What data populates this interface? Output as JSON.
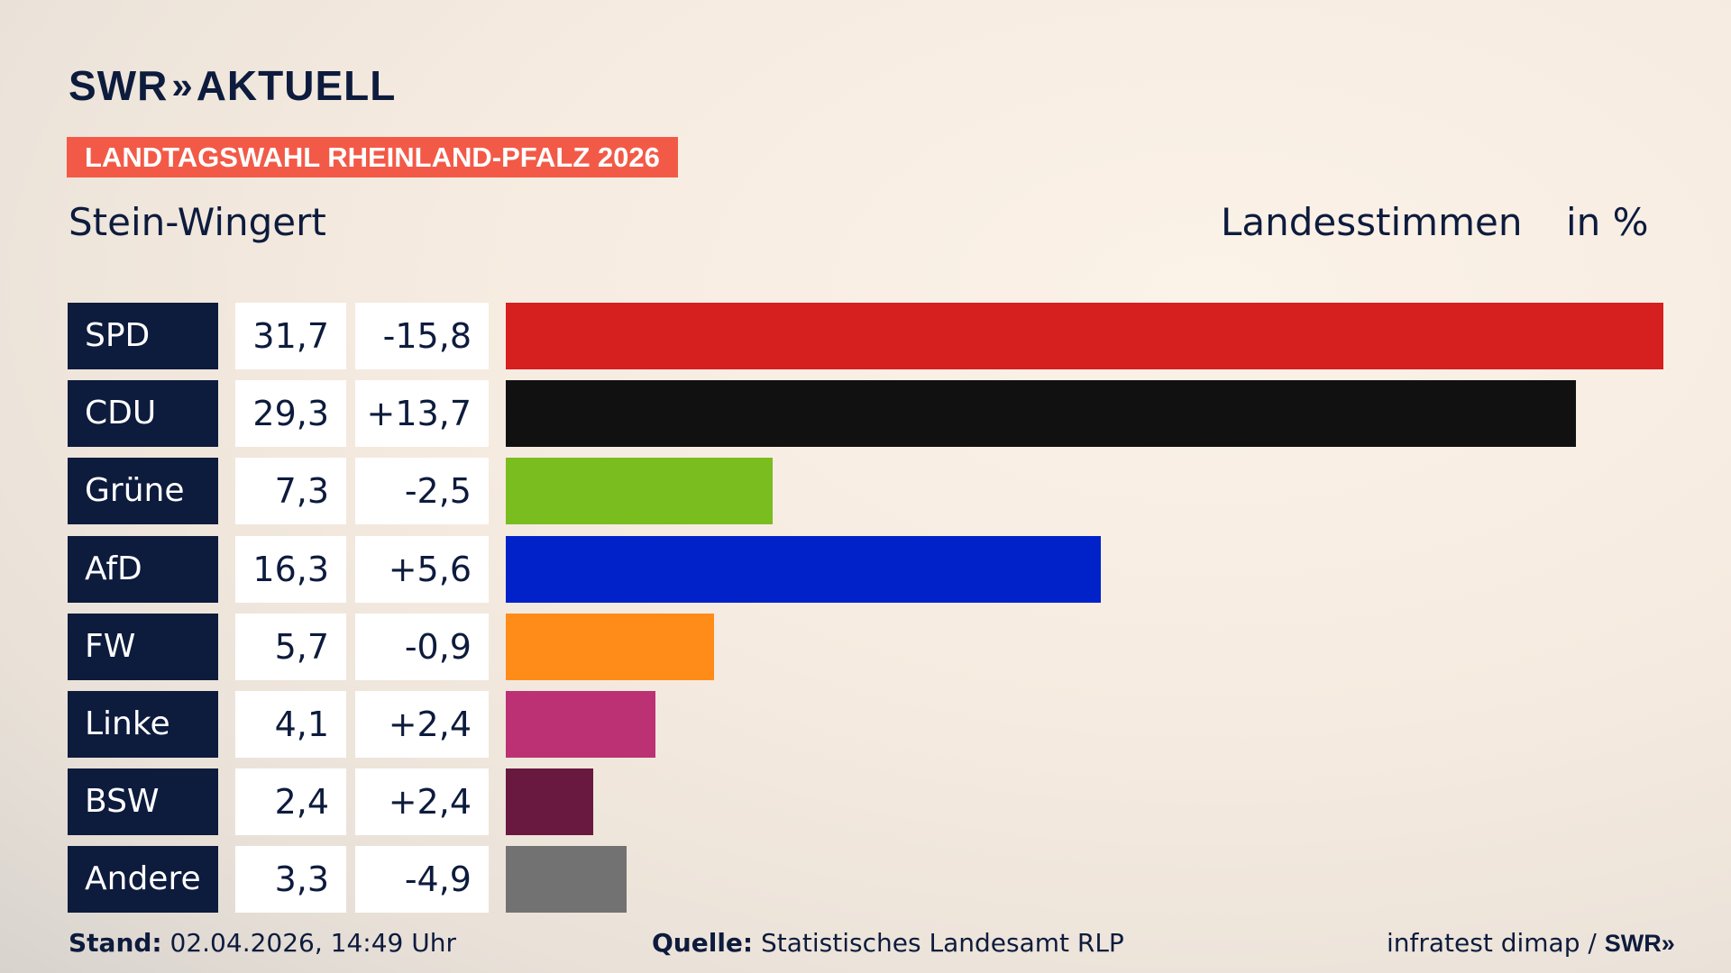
{
  "header": {
    "logo_text": "SWR",
    "logo_chevrons": "»",
    "logo_suffix": "AKTUELL",
    "tag": "LANDTAGSWAHL RHEINLAND-PFALZ 2026",
    "location": "Stein-Wingert",
    "measure": "Landesstimmen",
    "unit": "in %"
  },
  "chart_data": {
    "type": "bar",
    "orientation": "horizontal",
    "categories": [
      "SPD",
      "CDU",
      "Grüne",
      "AfD",
      "FW",
      "Linke",
      "BSW",
      "Andere"
    ],
    "values": [
      "31,7",
      "29,3",
      "7,3",
      "16,3",
      "5,7",
      "4,1",
      "2,4",
      "3,3"
    ],
    "changes": [
      "-15,8",
      "+13,7",
      "-2,5",
      "+5,6",
      "-0,9",
      "+2,4",
      "+2,4",
      "-4,9"
    ],
    "numeric_values": [
      31.7,
      29.3,
      7.3,
      16.3,
      5.7,
      4.1,
      2.4,
      3.3
    ],
    "colors": [
      "#d61f1f",
      "#111111",
      "#79bd1f",
      "#0022c8",
      "#ff8c19",
      "#bb3174",
      "#691840",
      "#727272"
    ],
    "xlim": [
      0,
      31.7
    ]
  },
  "footer": {
    "stand_label": "Stand:",
    "stand_value": "02.04.2026, 14:49 Uhr",
    "source_label": "Quelle:",
    "source_value": "Statistisches Landesamt RLP",
    "credit": "infratest dimap /",
    "credit_logo": "SWR»"
  }
}
